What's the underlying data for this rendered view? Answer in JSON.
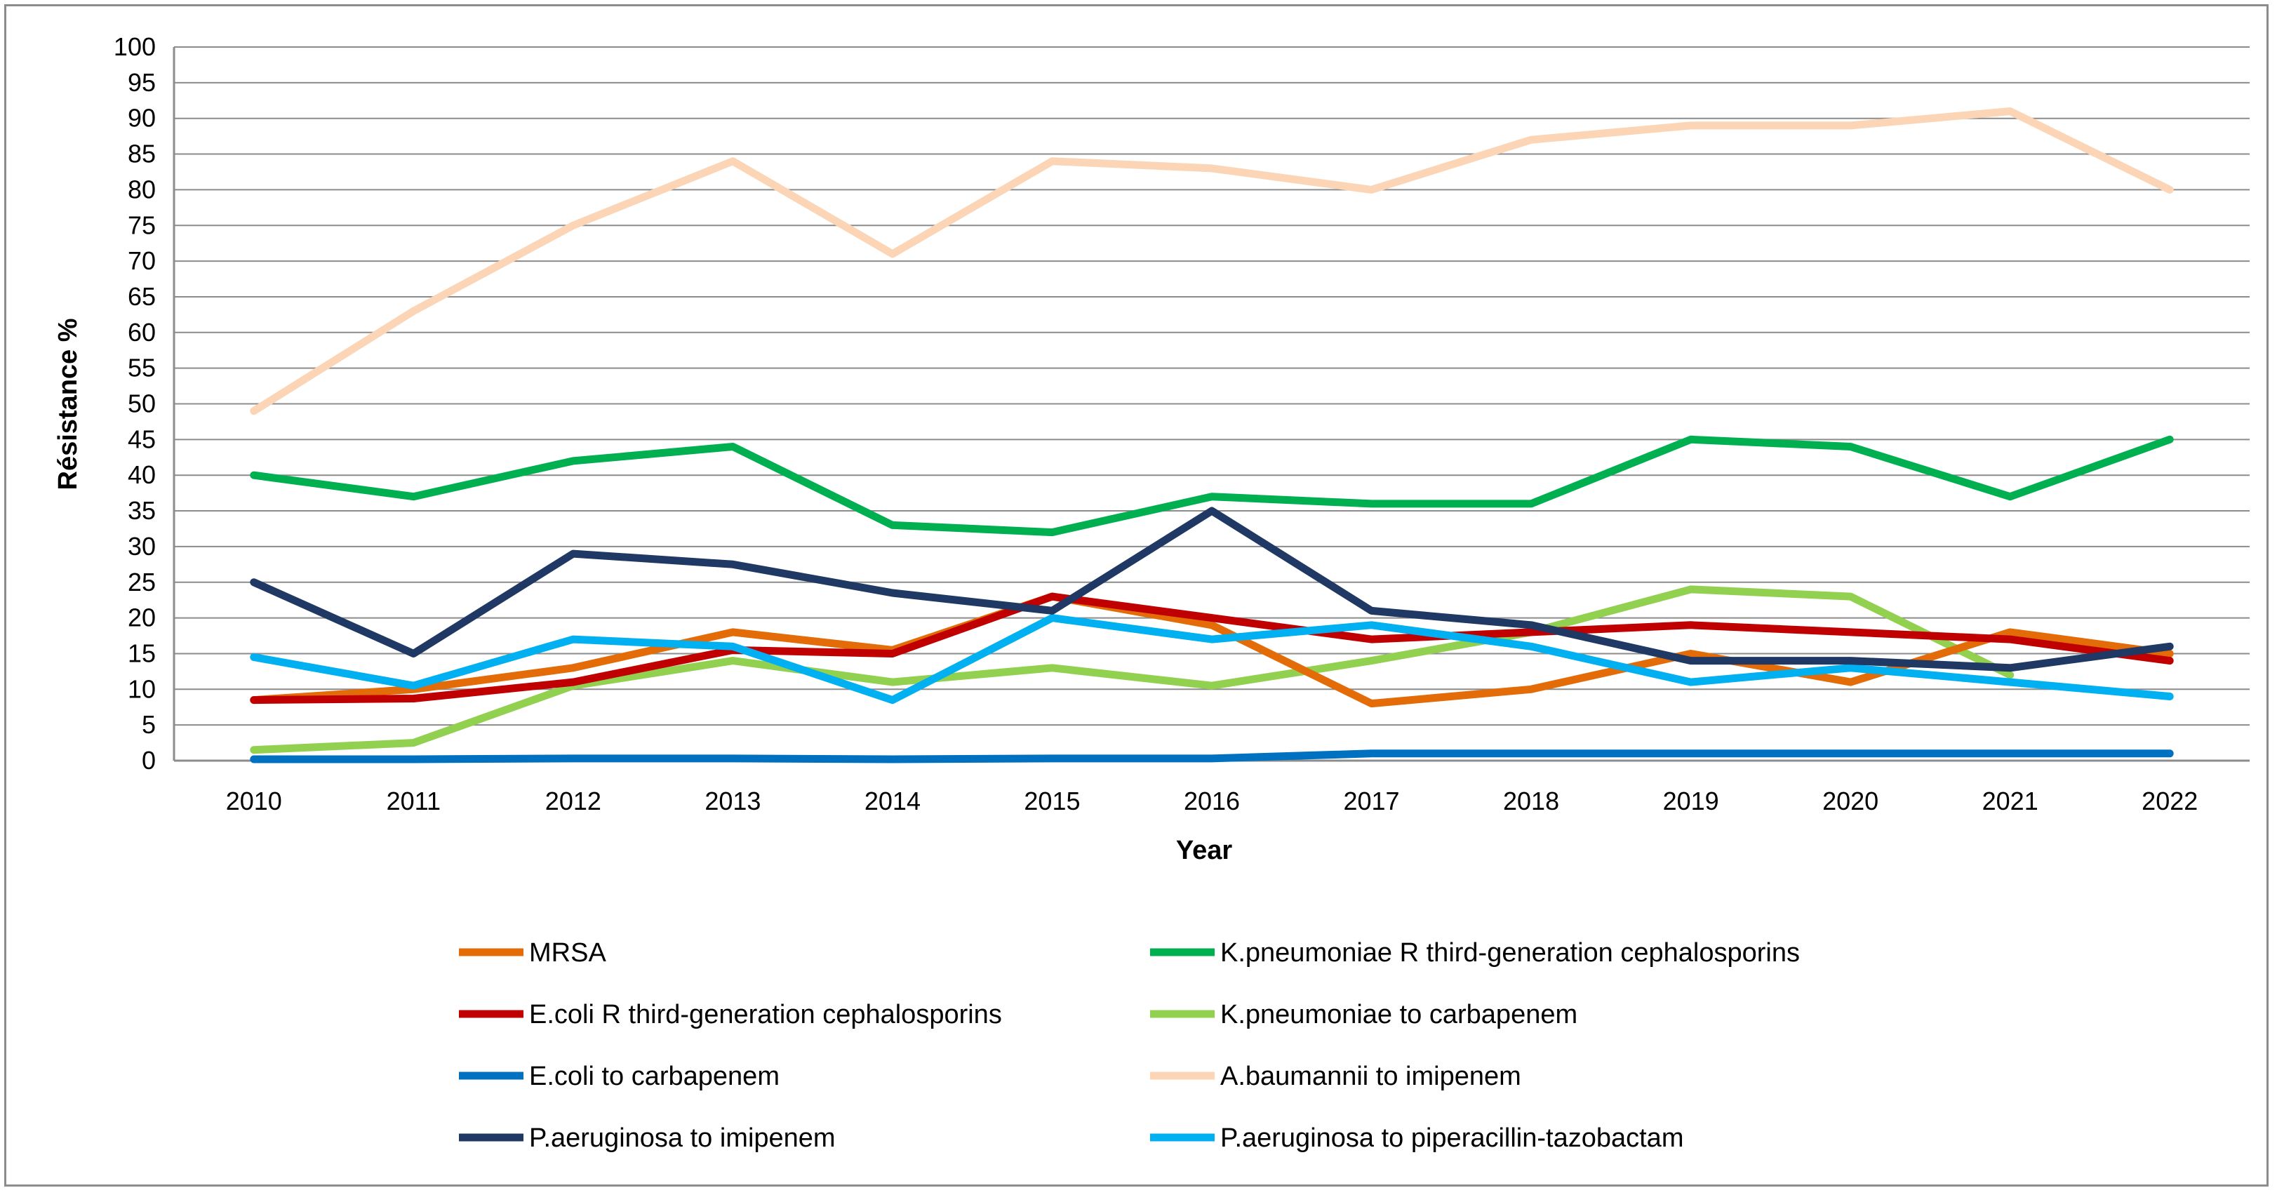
{
  "chart_data": {
    "type": "line",
    "title": "",
    "xlabel": "Year",
    "ylabel": "Résistance  %",
    "ylim": [
      0,
      100
    ],
    "y_ticks": [
      "0",
      "5",
      "10",
      "15",
      "20",
      "25",
      "30",
      "35",
      "40",
      "45",
      "50",
      "55",
      "60",
      "65",
      "70",
      "75",
      "80",
      "85",
      "90",
      "95",
      "100"
    ],
    "grid": true,
    "legend_position": "bottom",
    "categories": [
      "2010",
      "2011",
      "2012",
      "2013",
      "2014",
      "2015",
      "2016",
      "2017",
      "2018",
      "2019",
      "2020",
      "2021",
      "2022"
    ],
    "series": [
      {
        "name": "MRSA",
        "color": "#e36c09",
        "values": [
          8.5,
          10,
          13,
          18,
          15.5,
          23,
          19,
          8,
          10,
          15,
          11,
          18,
          15
        ]
      },
      {
        "name": "K.pneumoniae R third-generation cephalosporins",
        "color": "#00b050",
        "values": [
          40,
          37,
          42,
          44,
          33,
          32,
          37,
          36,
          36,
          45,
          44,
          37,
          45
        ]
      },
      {
        "name": "E.coli R third-generation cephalosporins",
        "color": "#c00000",
        "values": [
          8.5,
          8.7,
          11,
          15.5,
          15,
          23,
          20,
          17,
          18,
          19,
          18,
          17,
          14
        ]
      },
      {
        "name": "K.pneumoniae to carbapenem",
        "color": "#92d050",
        "values": [
          1.5,
          2.5,
          10.5,
          14,
          11,
          13,
          10.5,
          14,
          18,
          24,
          23,
          12,
          null
        ]
      },
      {
        "name": "E.coli to carbapenem",
        "color": "#0070c0",
        "values": [
          0.2,
          0.2,
          0.3,
          0.3,
          0.2,
          0.3,
          0.3,
          1,
          1,
          1,
          1,
          1,
          1
        ]
      },
      {
        "name": "A.baumannii to imipenem",
        "color": "#fbd5b5",
        "values": [
          49,
          63,
          75,
          84,
          71,
          84,
          83,
          80,
          87,
          89,
          89,
          91,
          80
        ]
      },
      {
        "name": "P.aeruginosa to imipenem",
        "color": "#1f3864",
        "values": [
          25,
          15,
          29,
          27.5,
          23.5,
          21,
          35,
          21,
          19,
          14,
          14,
          13,
          16
        ]
      },
      {
        "name": "P.aeruginosa to piperacillin-tazobactam",
        "color": "#00b0f0",
        "values": [
          14.5,
          10.5,
          17,
          16,
          8.5,
          20,
          17,
          19,
          16,
          11,
          13,
          11,
          9
        ]
      }
    ]
  }
}
